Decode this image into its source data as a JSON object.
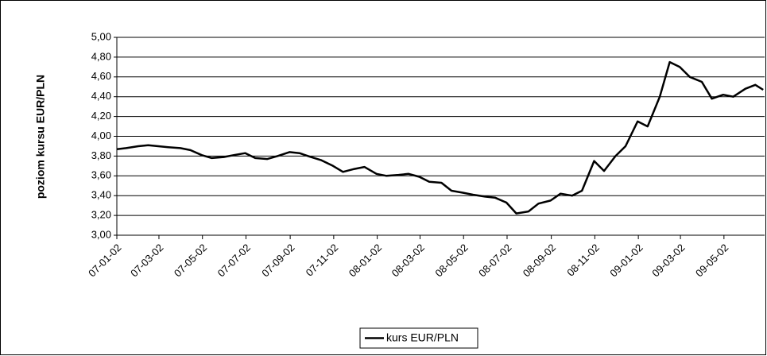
{
  "chart_data": {
    "type": "line",
    "y_label": "poziom kursu EUR/PLN",
    "x": [
      "07-01-02",
      "07-01-15",
      "07-02-01",
      "07-02-15",
      "07-03-01",
      "07-03-15",
      "07-04-01",
      "07-04-15",
      "07-05-01",
      "07-05-15",
      "07-06-01",
      "07-06-15",
      "07-07-01",
      "07-07-15",
      "07-08-01",
      "07-08-15",
      "07-09-01",
      "07-09-15",
      "07-10-01",
      "07-10-15",
      "07-11-01",
      "07-11-15",
      "07-12-01",
      "07-12-15",
      "08-01-01",
      "08-01-15",
      "08-02-01",
      "08-02-15",
      "08-03-01",
      "08-03-15",
      "08-04-01",
      "08-04-15",
      "08-05-01",
      "08-05-15",
      "08-06-01",
      "08-06-15",
      "08-07-01",
      "08-07-15",
      "08-08-01",
      "08-08-15",
      "08-09-01",
      "08-09-15",
      "08-10-01",
      "08-10-15",
      "08-11-01",
      "08-11-15",
      "08-12-01",
      "08-12-15",
      "09-01-01",
      "09-01-15",
      "09-02-01",
      "09-02-15",
      "09-03-01",
      "09-03-15",
      "09-04-01",
      "09-04-15",
      "09-05-01",
      "09-05-15",
      "09-06-01",
      "09-06-15",
      "09-06-26"
    ],
    "series": [
      {
        "name": "kurs EUR/PLN",
        "color": "#000000",
        "values": [
          3.87,
          3.88,
          3.9,
          3.91,
          3.9,
          3.89,
          3.88,
          3.86,
          3.81,
          3.78,
          3.79,
          3.81,
          3.83,
          3.78,
          3.77,
          3.8,
          3.84,
          3.83,
          3.79,
          3.76,
          3.7,
          3.64,
          3.67,
          3.69,
          3.62,
          3.6,
          3.61,
          3.62,
          3.59,
          3.54,
          3.53,
          3.45,
          3.43,
          3.41,
          3.39,
          3.38,
          3.33,
          3.22,
          3.24,
          3.32,
          3.35,
          3.42,
          3.4,
          3.45,
          3.75,
          3.65,
          3.8,
          3.9,
          4.15,
          4.1,
          4.4,
          4.75,
          4.7,
          4.6,
          4.55,
          4.38,
          4.42,
          4.4,
          4.48,
          4.52,
          4.47
        ]
      }
    ],
    "xlim": [
      "07-01-02",
      "09-06-28"
    ],
    "xticks": [
      "07-01-02",
      "07-03-02",
      "07-05-02",
      "07-07-02",
      "07-09-02",
      "07-11-02",
      "08-01-02",
      "08-03-02",
      "08-05-02",
      "08-07-02",
      "08-09-02",
      "08-11-02",
      "09-01-02",
      "09-03-02",
      "09-05-02"
    ],
    "ylim": [
      3.0,
      5.0
    ],
    "yticks": [
      {
        "value": 3.0,
        "label": "3,00"
      },
      {
        "value": 3.2,
        "label": "3,20"
      },
      {
        "value": 3.4,
        "label": "3,40"
      },
      {
        "value": 3.6,
        "label": "3,60"
      },
      {
        "value": 3.8,
        "label": "3,80"
      },
      {
        "value": 4.0,
        "label": "4,00"
      },
      {
        "value": 4.2,
        "label": "4,20"
      },
      {
        "value": 4.4,
        "label": "4,40"
      },
      {
        "value": 4.6,
        "label": "4,60"
      },
      {
        "value": 4.8,
        "label": "4,80"
      },
      {
        "value": 5.0,
        "label": "5,00"
      }
    ],
    "grid": true,
    "legend": "bottom"
  }
}
